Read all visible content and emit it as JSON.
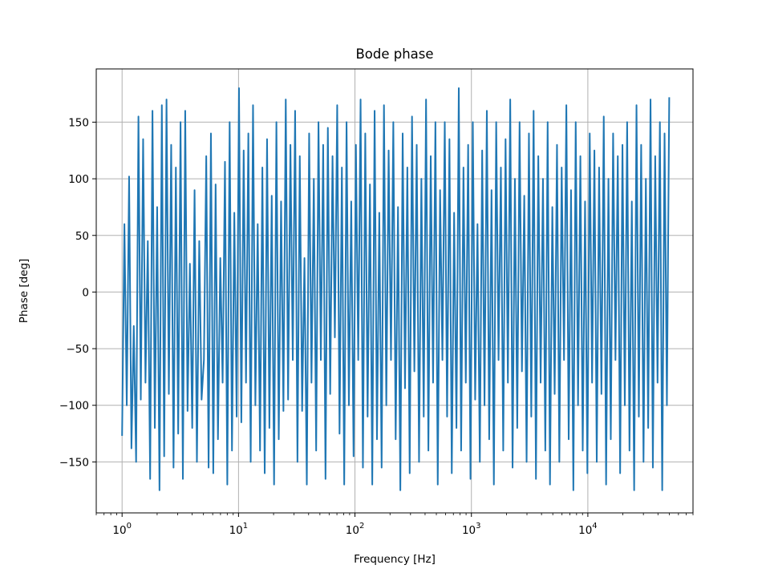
{
  "chart_data": {
    "type": "line",
    "title": "Bode phase",
    "xlabel": "Frequency [Hz]",
    "ylabel": "Phase [deg]",
    "x_scale": "log",
    "xlim": [
      0.6,
      80000
    ],
    "ylim": [
      -195,
      197
    ],
    "grid": true,
    "line_color": "#1f77b4",
    "x_major_ticks": [
      {
        "value": 1,
        "base": "10",
        "exp": "0"
      },
      {
        "value": 10,
        "base": "10",
        "exp": "1"
      },
      {
        "value": 100,
        "base": "10",
        "exp": "2"
      },
      {
        "value": 1000,
        "base": "10",
        "exp": "3"
      },
      {
        "value": 10000,
        "base": "10",
        "exp": "4"
      }
    ],
    "y_ticks": [
      {
        "value": -150,
        "label": "−150"
      },
      {
        "value": -100,
        "label": "−100"
      },
      {
        "value": -50,
        "label": "−50"
      },
      {
        "value": 0,
        "label": "0"
      },
      {
        "value": 50,
        "label": "50"
      },
      {
        "value": 100,
        "label": "100"
      },
      {
        "value": 150,
        "label": "150"
      }
    ],
    "series": [
      {
        "x_range": [
          1,
          50000
        ],
        "values": [
          -127,
          60,
          -100,
          102,
          -138,
          -30,
          -150,
          155,
          -95,
          135,
          -80,
          45,
          -165,
          160,
          -120,
          75,
          -175,
          165,
          -145,
          170,
          -90,
          130,
          -155,
          110,
          -125,
          150,
          -165,
          160,
          -105,
          25,
          -120,
          90,
          -150,
          45,
          -95,
          -60,
          120,
          -155,
          140,
          -160,
          95,
          -130,
          30,
          -80,
          115,
          -170,
          150,
          -140,
          70,
          -110,
          180,
          -115,
          125,
          -80,
          140,
          -150,
          165,
          -100,
          60,
          -140,
          110,
          -160,
          135,
          -120,
          85,
          -170,
          150,
          -130,
          80,
          -105,
          170,
          -95,
          130,
          -60,
          160,
          -150,
          120,
          -105,
          30,
          -170,
          140,
          -80,
          100,
          -140,
          150,
          -60,
          130,
          -165,
          145,
          -90,
          120,
          -40,
          165,
          -125,
          110,
          -170,
          150,
          -100,
          80,
          -145,
          130,
          -60,
          170,
          -155,
          140,
          -110,
          95,
          -170,
          160,
          -130,
          70,
          -155,
          165,
          -100,
          125,
          -60,
          150,
          -130,
          75,
          -175,
          140,
          -85,
          110,
          -160,
          155,
          -70,
          130,
          -150,
          100,
          -110,
          170,
          -140,
          120,
          -80,
          150,
          -170,
          90,
          -60,
          150,
          -110,
          135,
          -160,
          70,
          -120,
          180,
          -140,
          110,
          -80,
          130,
          -165,
          150,
          -95,
          60,
          -150,
          125,
          -100,
          160,
          -130,
          90,
          -170,
          150,
          -60,
          110,
          -140,
          135,
          -80,
          170,
          -155,
          100,
          -120,
          150,
          -70,
          85,
          -150,
          140,
          -110,
          160,
          -165,
          120,
          -80,
          100,
          -140,
          150,
          -170,
          75,
          -90,
          130,
          -150,
          110,
          -60,
          165,
          -130,
          90,
          -175,
          150,
          -100,
          120,
          -140,
          80,
          -160,
          140,
          -80,
          125,
          -150,
          110,
          -90,
          155,
          -170,
          100,
          -130,
          140,
          -60,
          120,
          -160,
          130,
          -100,
          150,
          -140,
          80,
          -175,
          165,
          -110,
          130,
          -150,
          100,
          -120,
          170,
          -155,
          120,
          -80,
          150,
          -175,
          140,
          -100,
          172
        ]
      }
    ]
  }
}
